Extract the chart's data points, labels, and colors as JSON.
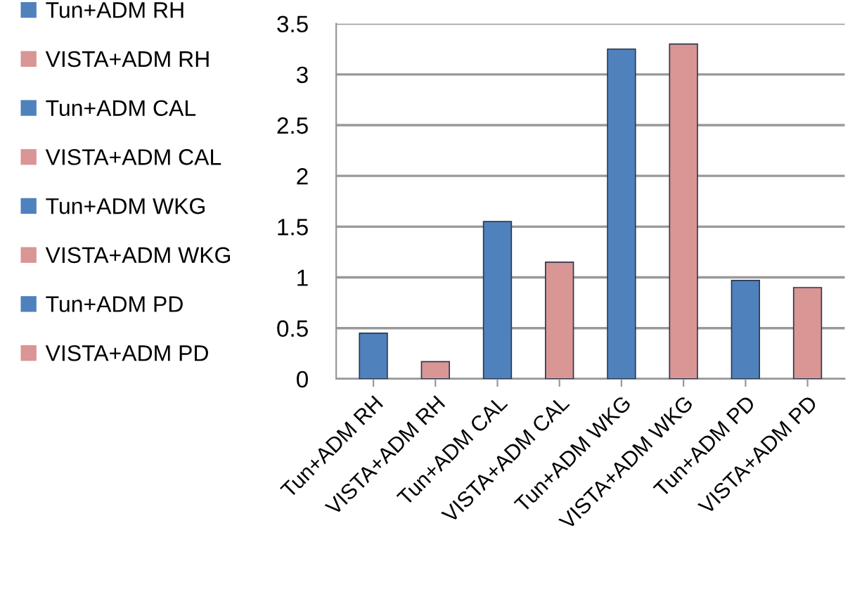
{
  "chart_data": {
    "type": "bar",
    "categories": [
      "Tun+ADM RH",
      "VISTA+ADM RH",
      "Tun+ADM CAL",
      "VISTA+ADM CAL",
      "Tun+ADM WKG",
      "VISTA+ADM WKG",
      "Tun+ADM PD",
      "VISTA+ADM PD"
    ],
    "series": [
      {
        "name": "Tun+ADM RH",
        "color": "#4f81bd",
        "values": [
          0.45,
          null,
          null,
          null,
          null,
          null,
          null,
          null
        ]
      },
      {
        "name": "VISTA+ADM RH",
        "color": "#d99694",
        "values": [
          null,
          0.17,
          null,
          null,
          null,
          null,
          null,
          null
        ]
      },
      {
        "name": "Tun+ADM CAL",
        "color": "#4f81bd",
        "values": [
          null,
          null,
          1.55,
          null,
          null,
          null,
          null,
          null
        ]
      },
      {
        "name": "VISTA+ADM CAL",
        "color": "#d99694",
        "values": [
          null,
          null,
          null,
          1.15,
          null,
          null,
          null,
          null
        ]
      },
      {
        "name": "Tun+ADM WKG",
        "color": "#4f81bd",
        "values": [
          null,
          null,
          null,
          null,
          3.25,
          null,
          null,
          null
        ]
      },
      {
        "name": "VISTA+ADM WKG",
        "color": "#d99694",
        "values": [
          null,
          null,
          null,
          null,
          null,
          3.3,
          null,
          null
        ]
      },
      {
        "name": "Tun+ADM PD",
        "color": "#4f81bd",
        "values": [
          null,
          null,
          null,
          null,
          null,
          null,
          0.97,
          null
        ]
      },
      {
        "name": "VISTA+ADM PD",
        "color": "#d99694",
        "values": [
          null,
          null,
          null,
          null,
          null,
          null,
          null,
          0.9
        ]
      }
    ],
    "ylim": [
      0,
      3.5
    ],
    "yticks": [
      0,
      0.5,
      1,
      1.5,
      2,
      2.5,
      3,
      3.5
    ],
    "grid": "y",
    "legend": "left"
  }
}
